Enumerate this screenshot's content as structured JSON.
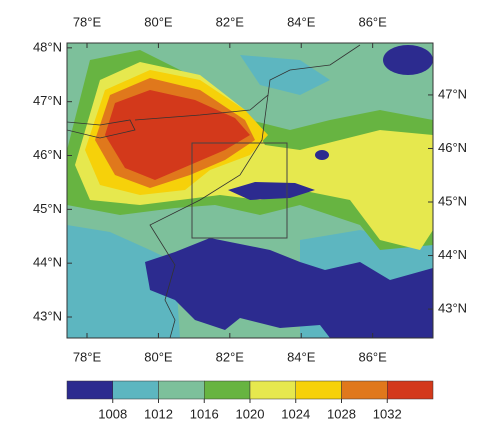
{
  "map": {
    "lonlim": [
      77.44,
      87.69
    ],
    "latlim": [
      42.61,
      48.09
    ],
    "lat2lim": [
      42.46,
      47.97
    ],
    "xticks": [
      {
        "value": 78,
        "label": "78°E"
      },
      {
        "value": 80,
        "label": "80°E"
      },
      {
        "value": 82,
        "label": "82°E"
      },
      {
        "value": 84,
        "label": "84°E"
      },
      {
        "value": 86,
        "label": "86°E"
      }
    ],
    "yticks": [
      {
        "value": 48,
        "label": "48°N"
      },
      {
        "value": 47,
        "label": "47°N"
      },
      {
        "value": 46,
        "label": "46°N"
      },
      {
        "value": 45,
        "label": "45°N"
      },
      {
        "value": 44,
        "label": "44°N"
      },
      {
        "value": 43,
        "label": "43°N"
      }
    ],
    "y2ticks": [
      {
        "value": 47,
        "label": "47°N"
      },
      {
        "value": 46,
        "label": "46°N"
      },
      {
        "value": 45,
        "label": "45°N"
      },
      {
        "value": 44,
        "label": "44°N"
      },
      {
        "value": 43,
        "label": "43°N"
      }
    ]
  },
  "colorbar": {
    "range": [
      1004,
      1036
    ],
    "ticks": [
      1008,
      1012,
      1016,
      1020,
      1024,
      1028,
      1032
    ],
    "colors": [
      "#2c2b8f",
      "#5db6c0",
      "#7dc09b",
      "#67b441",
      "#e6e84e",
      "#f6d10a",
      "#e0781c",
      "#d3391b"
    ]
  }
}
